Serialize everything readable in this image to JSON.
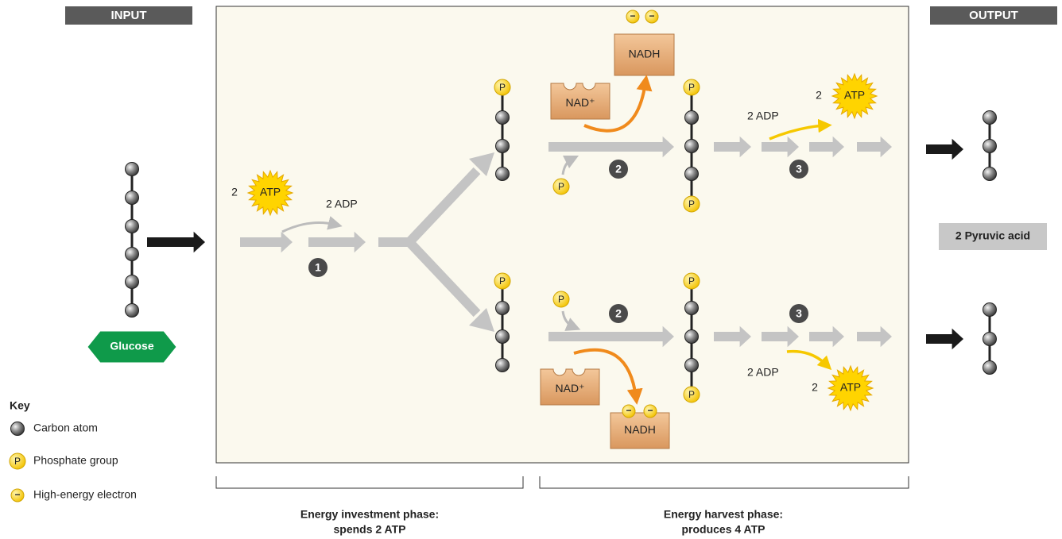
{
  "header": {
    "input": "INPUT",
    "output": "OUTPUT"
  },
  "glucose": "Glucose",
  "pyruvic_acid": "2 Pyruvic acid",
  "symbols": {
    "phosphate": "P",
    "electron": "−",
    "atp_count": "2",
    "atp": "ATP",
    "adp": "2 ADP",
    "nad": "NAD⁺",
    "nadh": "NADH"
  },
  "steps": [
    "1",
    "2",
    "3"
  ],
  "phases": [
    {
      "line1": "Energy investment phase:",
      "line2": "spends 2 ATP"
    },
    {
      "line1": "Energy harvest phase:",
      "line2": "produces 4 ATP"
    }
  ],
  "key": {
    "title": "Key",
    "items": [
      "Carbon atom",
      "Phosphate group",
      "High-energy electron"
    ]
  }
}
